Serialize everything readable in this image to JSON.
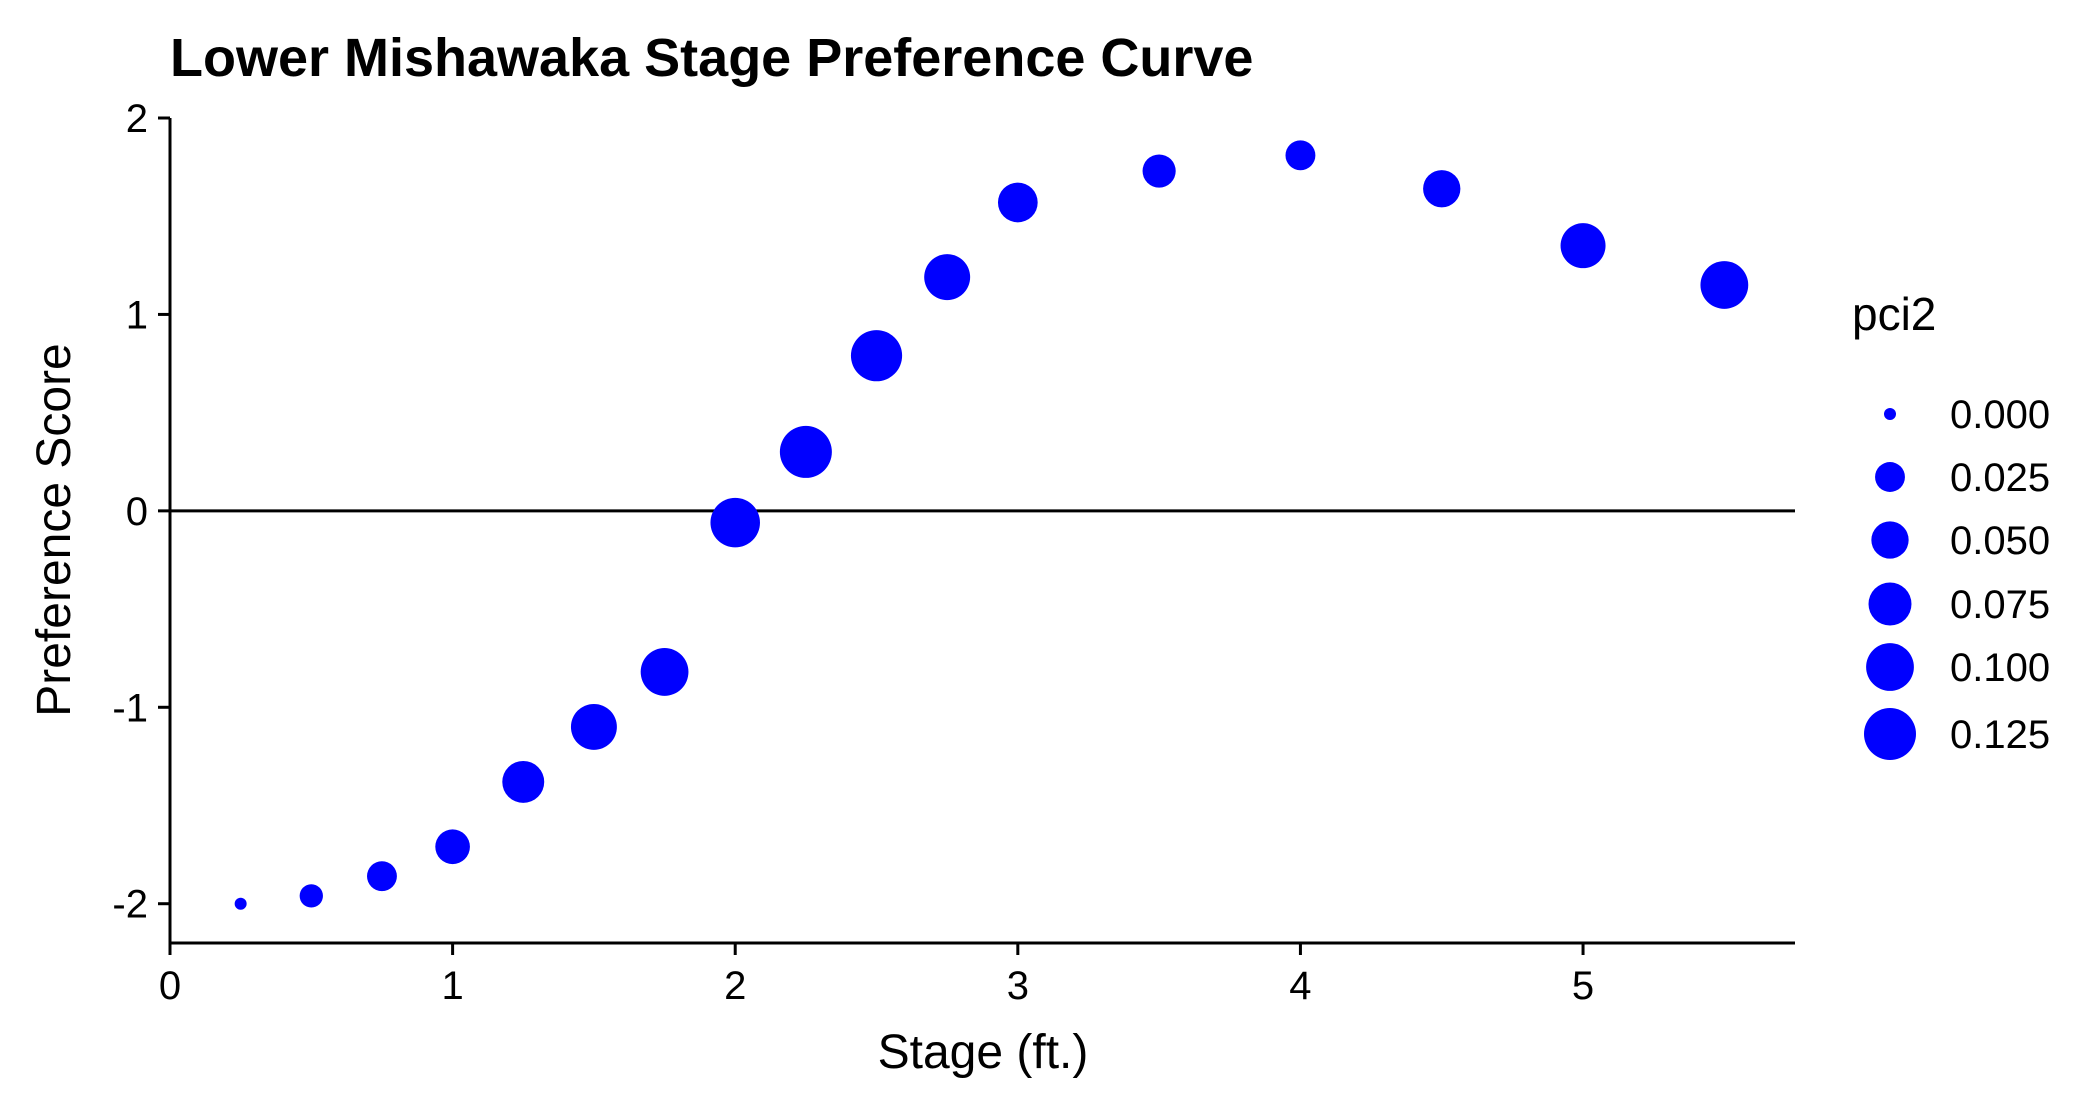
{
  "chart_data": {
    "type": "scatter",
    "title": "Lower Mishawaka Stage Preference Curve",
    "xlabel": "Stage (ft.)",
    "ylabel": "Preference Score",
    "xlim": [
      0,
      5.75
    ],
    "ylim": [
      -2.2,
      2.0
    ],
    "xticks": [
      0,
      1,
      2,
      3,
      4,
      5
    ],
    "xtick_labels": [
      "0",
      "1",
      "2",
      "3",
      "4",
      "5"
    ],
    "yticks": [
      -2,
      -1,
      0,
      1,
      2
    ],
    "ytick_labels": [
      "-2",
      "-1",
      "0",
      "1",
      "2"
    ],
    "reference_line_y": 0,
    "point_color": "#0000ff",
    "grid": false,
    "size_variable": "pci2",
    "points": [
      {
        "x": 0.25,
        "y": -2.0,
        "size": 0.0
      },
      {
        "x": 0.5,
        "y": -1.96,
        "size": 0.01
      },
      {
        "x": 0.75,
        "y": -1.86,
        "size": 0.025
      },
      {
        "x": 1.0,
        "y": -1.71,
        "size": 0.04
      },
      {
        "x": 1.25,
        "y": -1.38,
        "size": 0.07
      },
      {
        "x": 1.5,
        "y": -1.1,
        "size": 0.09
      },
      {
        "x": 1.75,
        "y": -0.82,
        "size": 0.1
      },
      {
        "x": 2.0,
        "y": -0.06,
        "size": 0.11
      },
      {
        "x": 2.25,
        "y": 0.3,
        "size": 0.125
      },
      {
        "x": 2.5,
        "y": 0.79,
        "size": 0.12
      },
      {
        "x": 2.75,
        "y": 1.19,
        "size": 0.09
      },
      {
        "x": 3.0,
        "y": 1.57,
        "size": 0.06
      },
      {
        "x": 3.5,
        "y": 1.73,
        "size": 0.035
      },
      {
        "x": 4.0,
        "y": 1.81,
        "size": 0.025
      },
      {
        "x": 4.5,
        "y": 1.64,
        "size": 0.05
      },
      {
        "x": 5.0,
        "y": 1.35,
        "size": 0.085
      },
      {
        "x": 5.5,
        "y": 1.15,
        "size": 0.1
      }
    ],
    "legend": {
      "title": "pci2",
      "position": "right",
      "entries": [
        {
          "label": "0.000",
          "value": 0.0
        },
        {
          "label": "0.025",
          "value": 0.025
        },
        {
          "label": "0.050",
          "value": 0.05
        },
        {
          "label": "0.075",
          "value": 0.075
        },
        {
          "label": "0.100",
          "value": 0.1
        },
        {
          "label": "0.125",
          "value": 0.125
        }
      ]
    }
  }
}
